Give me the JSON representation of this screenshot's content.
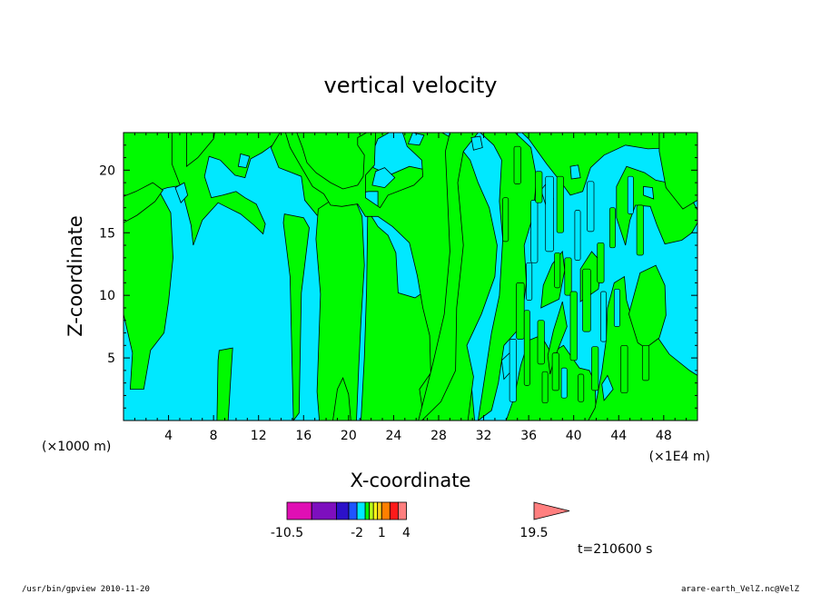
{
  "chart_data": {
    "type": "heatmap",
    "title": "vertical velocity",
    "xlabel": "X-coordinate",
    "ylabel": "Z-coordinate",
    "x_unit_left": "(×1000 m)",
    "x_unit_right": "(×1E4 m)",
    "x_ticks": [
      4,
      8,
      12,
      16,
      20,
      24,
      28,
      32,
      36,
      40,
      44,
      48
    ],
    "y_ticks": [
      5,
      10,
      15,
      20
    ],
    "xlim": [
      0,
      51
    ],
    "ylim": [
      0,
      23
    ],
    "colorbar": {
      "levels": [
        -10.5,
        -7.5,
        -4.5,
        -3,
        -2,
        -1,
        -0.5,
        0,
        0.5,
        1,
        2,
        3,
        4,
        10,
        15,
        19.5
      ],
      "tick_labels": [
        "-10.5",
        "-2",
        "1",
        "4",
        "19.5"
      ],
      "tick_values": [
        -10.5,
        -2,
        1,
        4,
        19.5
      ],
      "colors": [
        "#e00fb4",
        "#7d0fbe",
        "#2c11c9",
        "#1f55ff",
        "#00e8ff",
        "#00fa00",
        "#bcff1a",
        "#fffc18",
        "#ffd21d",
        "#ff7f00",
        "#ff1a1a",
        "#ff7f7f"
      ],
      "extend": "max"
    },
    "series": [
      {
        "name": "",
        "color": "#00fa00"
      },
      {
        "name": "",
        "color": "#00e8ff"
      }
    ],
    "timestamp": "t=210600 s"
  },
  "footer": {
    "left": "/usr/bin/gpview  2010-11-20",
    "right": "arare-earth_VelZ.nc@VelZ"
  }
}
